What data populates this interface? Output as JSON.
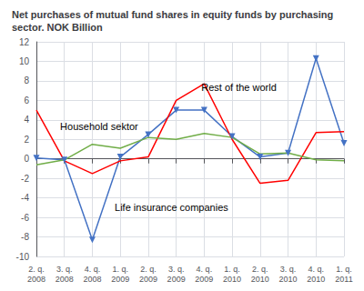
{
  "chart_data": {
    "type": "line",
    "title": "Net purchases of mutual fund shares in equity funds by purchasing\nsector. NOK Billion",
    "categories": [
      "2. q.\n2008",
      "3. q.\n2008",
      "4. q.\n2008",
      "1. q.\n2009",
      "2. q.\n2009",
      "3. q.\n2009",
      "4. q.\n2009",
      "1. q.\n2010",
      "2. q.\n2010",
      "3. q.\n2010",
      "4. q.\n2010",
      "1. q.\n2011"
    ],
    "series": [
      {
        "color": "#4472C4",
        "marker": "triangle-down",
        "values": [
          0.1,
          -0.1,
          -8.3,
          0.2,
          2.5,
          5.0,
          5.0,
          2.3,
          0.2,
          0.6,
          10.3,
          1.6
        ]
      },
      {
        "color": "#FF0000",
        "marker": "none",
        "values": [
          5.0,
          -0.2,
          -1.5,
          -0.2,
          0.2,
          6.0,
          7.7,
          2.0,
          -2.5,
          -2.2,
          2.7,
          2.8
        ]
      },
      {
        "color": "#70AD47",
        "marker": "none",
        "values": [
          -0.6,
          -0.1,
          1.5,
          1.1,
          2.2,
          2.0,
          2.6,
          2.2,
          0.5,
          0.6,
          -0.1,
          -0.2
        ]
      }
    ],
    "ylim": [
      -10,
      12
    ],
    "yticks": [
      -10,
      -8,
      -6,
      -4,
      -2,
      0,
      2,
      4,
      6,
      8,
      10,
      12
    ],
    "grid": true,
    "annotations": [
      {
        "text": "Rest of the world",
        "x": 5.9,
        "y": 6.8
      },
      {
        "text": "Household sektor",
        "x": 0.85,
        "y": 2.8
      },
      {
        "text": "Life insurance companies",
        "x": 2.8,
        "y": -5.5
      }
    ]
  }
}
